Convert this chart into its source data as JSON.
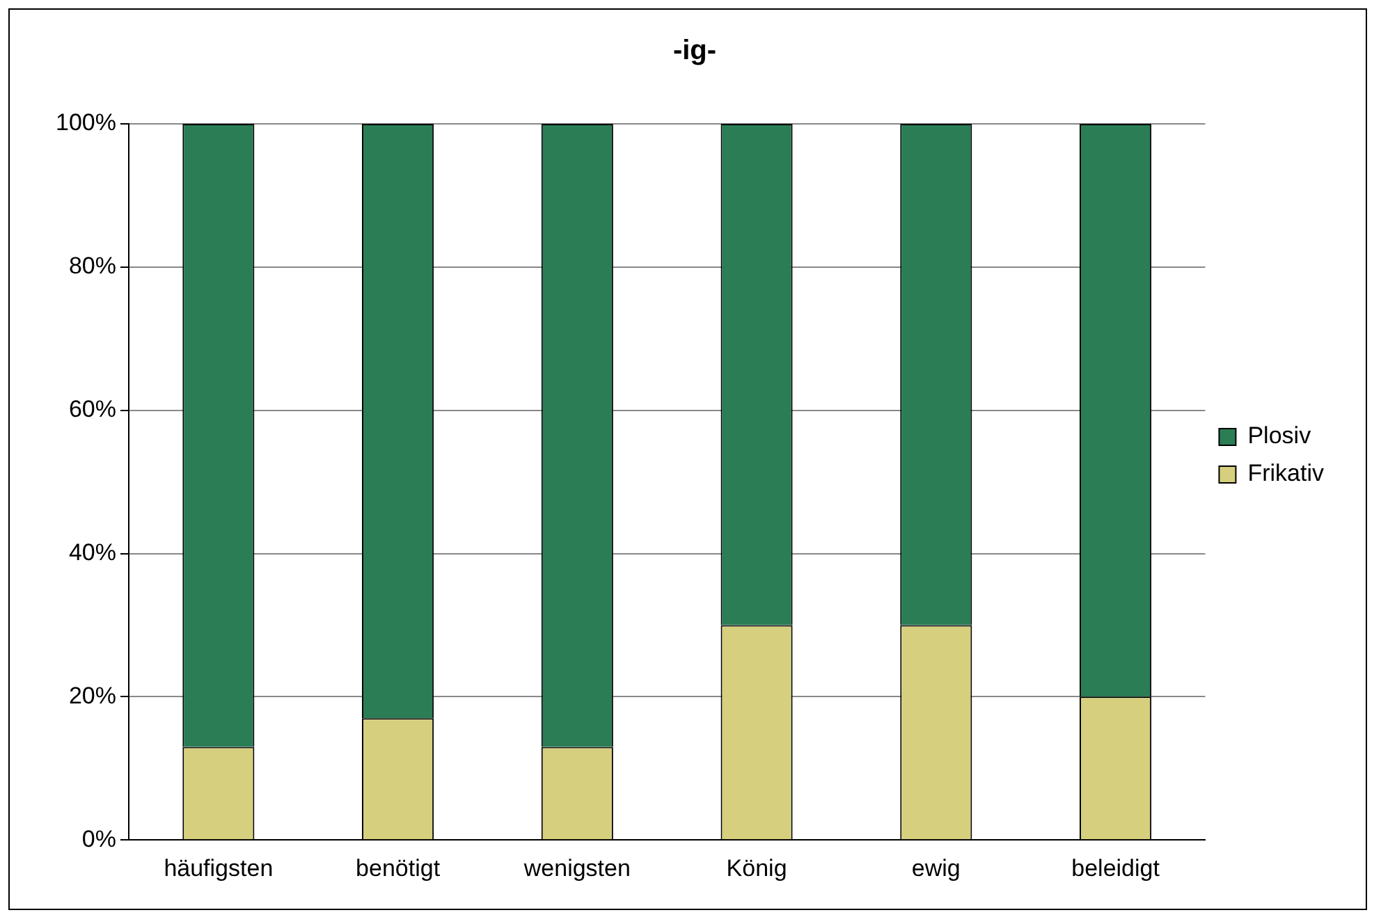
{
  "chart_data": {
    "type": "bar",
    "title": "-ig-",
    "categories": [
      "häufigsten",
      "benötigt",
      "wenigsten",
      "König",
      "ewig",
      "beleidigt"
    ],
    "stacked": true,
    "series": [
      {
        "name": "Frikativ",
        "color": "#d6cf7e",
        "values": [
          13,
          17,
          13,
          30,
          30,
          20
        ]
      },
      {
        "name": "Plosiv",
        "color": "#2a7d55",
        "values": [
          87,
          83,
          87,
          70,
          70,
          80
        ]
      }
    ],
    "ylim": [
      0,
      100
    ],
    "yticks": [
      {
        "value": 0,
        "label": "0%"
      },
      {
        "value": 20,
        "label": "20%"
      },
      {
        "value": 40,
        "label": "40%"
      },
      {
        "value": 60,
        "label": "60%"
      },
      {
        "value": 80,
        "label": "80%"
      },
      {
        "value": 100,
        "label": "100%"
      }
    ],
    "grid": "y",
    "legend": "right"
  }
}
